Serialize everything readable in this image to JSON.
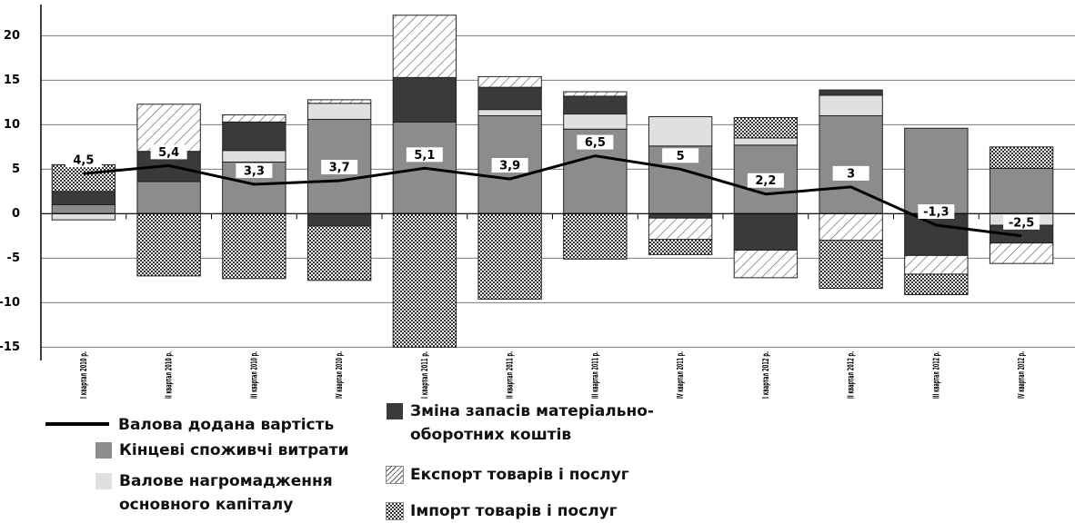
{
  "chart_data": {
    "type": "stacked-bar-line",
    "categories": [
      "I квартал 2010 р.",
      "II квартал 2010 р.",
      "III квартал 2010 р.",
      "IV квартал 2010 р.",
      "I квартал 2011 р.",
      "II квартал 2011 р.",
      "III квартал 2011 р.",
      "IV квартал 2011 р.",
      "I квартал 2012 р.",
      "II квартал 2012 р.",
      "III квартал 2012 р.",
      "IV квартал 2012 р."
    ],
    "series": [
      {
        "name": "Кінцеві споживчі витрати",
        "color": "#8c8c8c",
        "values": [
          1,
          3.6,
          5.8,
          10.6,
          10.3,
          11,
          9.5,
          7.6,
          7.7,
          11,
          9.6,
          5.1
        ]
      },
      {
        "name": "Валове нагромадження основного капіталу",
        "color": "#e0e0e0",
        "values": [
          -0.7,
          0,
          1.3,
          1.8,
          0,
          0.7,
          1.7,
          3.3,
          0.8,
          2.3,
          0,
          -1.3
        ]
      },
      {
        "name": "Зміна запасів матеріально-оборотних коштів",
        "color": "#3a3a3a",
        "values": [
          1.5,
          3.4,
          3.2,
          -1.4,
          5,
          2.5,
          2,
          -0.5,
          -4.1,
          0.6,
          -4.7,
          -2
        ]
      },
      {
        "name": "Експорт товарів і послуг",
        "color": "hatch",
        "values": [
          0,
          5.3,
          0.8,
          0.4,
          7,
          1.2,
          0.5,
          -2.4,
          -3.1,
          -3,
          -2.1,
          -2.3
        ]
      },
      {
        "name": "Імпорт товарів і послуг",
        "color": "dots",
        "values": [
          3,
          -7,
          -7.3,
          -6.1,
          -15,
          -9.6,
          -5.1,
          -1.7,
          2.3,
          -5.4,
          -2.3,
          2.4
        ]
      },
      {
        "name": "Валова додана вартість",
        "color": "#000000",
        "type": "line",
        "values": [
          4.5,
          5.4,
          3.3,
          3.7,
          5.1,
          3.9,
          6.5,
          5,
          2.2,
          3,
          -1.3,
          -2.5
        ],
        "value_labels": [
          "4,5",
          "5,4",
          "3,3",
          "3,7",
          "5,1",
          "3,9",
          "6,5",
          "5",
          "2,2",
          "3",
          "-1,3",
          "-2,5"
        ]
      }
    ],
    "ylim": [
      -16.5,
      23.5
    ],
    "yticks": [
      -15,
      -10,
      -5,
      0,
      5,
      10,
      15,
      20
    ],
    "grid": true
  }
}
